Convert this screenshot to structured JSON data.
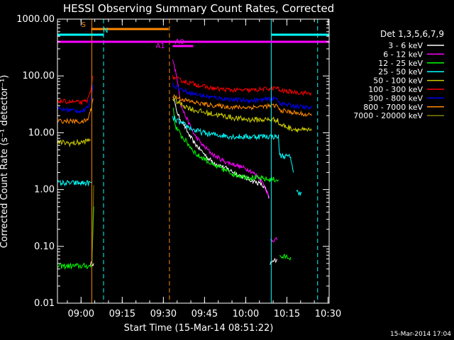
{
  "chart_data": {
    "type": "line",
    "title": "HESSI Observing Summary Count Rates, Corrected",
    "xlabel": "Start Time (15-Mar-14 08:51:22)",
    "ylabel": "Corrected Count Rate (s⁻¹ detector⁻¹)",
    "footer": "15-Mar-2014 17:04",
    "x_unit": "minutes after 08:51:22",
    "xlim": [
      0,
      99
    ],
    "ylim": [
      0.01,
      1000
    ],
    "yscale": "log",
    "grid": false,
    "legend_position": "right",
    "legend_title": "Det 1,3,5,6,7,9",
    "x_ticks": [
      {
        "t": 8.6,
        "label": "09:00"
      },
      {
        "t": 23.6,
        "label": "09:15"
      },
      {
        "t": 38.6,
        "label": "09:30"
      },
      {
        "t": 53.6,
        "label": "09:45"
      },
      {
        "t": 68.6,
        "label": "10:00"
      },
      {
        "t": 83.6,
        "label": "10:15"
      },
      {
        "t": 98.6,
        "label": "10:30"
      }
    ],
    "y_ticks": [
      {
        "v": 0.01,
        "label": "0.01"
      },
      {
        "v": 0.1,
        "label": "0.10"
      },
      {
        "v": 1,
        "label": "1.00"
      },
      {
        "v": 10,
        "label": "10.00"
      },
      {
        "v": 100,
        "label": "100.00"
      },
      {
        "v": 1000,
        "label": "1000.00"
      }
    ],
    "series": [
      {
        "name": "3 - 6 keV",
        "color": "#ffffff",
        "noise": 0.04,
        "points": [
          [
            12,
            0.05
          ],
          [
            13.2,
            0.05
          ],
          [
            13.4,
            null
          ],
          [
            42,
            45
          ],
          [
            43,
            30
          ],
          [
            44,
            20
          ],
          [
            46,
            14
          ],
          [
            48,
            9
          ],
          [
            50,
            6.5
          ],
          [
            53,
            4.5
          ],
          [
            55,
            3.5
          ],
          [
            58,
            2.8
          ],
          [
            62,
            2.3
          ],
          [
            66,
            1.8
          ],
          [
            70,
            1.5
          ],
          [
            74,
            1.25
          ],
          [
            76,
            1.0
          ],
          [
            77,
            0.7
          ],
          [
            77.1,
            null
          ],
          [
            77.5,
            0.05
          ],
          [
            80,
            0.06
          ],
          [
            80.1,
            null
          ]
        ]
      },
      {
        "name": "6 - 12 keV",
        "color": "#ff00ff",
        "noise": 0.04,
        "points": [
          [
            42,
            200
          ],
          [
            43,
            120
          ],
          [
            44,
            70
          ],
          [
            45,
            30
          ],
          [
            47,
            18
          ],
          [
            50,
            9
          ],
          [
            53,
            6
          ],
          [
            57,
            4
          ],
          [
            61,
            3.1
          ],
          [
            65,
            2.7
          ],
          [
            70,
            2.2
          ],
          [
            73,
            1.7
          ],
          [
            75,
            1.3
          ],
          [
            76,
            1.0
          ],
          [
            77.2,
            0.7
          ],
          [
            77.3,
            null
          ],
          [
            77.5,
            0.13
          ],
          [
            80,
            0.13
          ],
          [
            80.1,
            null
          ]
        ]
      },
      {
        "name": "12 - 25 keV",
        "color": "#00ff00",
        "noise": 0.05,
        "points": [
          [
            0,
            0.045
          ],
          [
            12.5,
            0.045
          ],
          [
            13.2,
            0.5
          ],
          [
            13.3,
            null
          ],
          [
            42,
            30
          ],
          [
            43,
            13
          ],
          [
            45,
            9
          ],
          [
            48,
            6
          ],
          [
            51,
            4
          ],
          [
            54,
            3.4
          ],
          [
            57,
            2.6
          ],
          [
            60,
            2.3
          ],
          [
            64,
            1.9
          ],
          [
            68,
            1.7
          ],
          [
            72,
            1.6
          ],
          [
            77,
            1.5
          ],
          [
            80.5,
            1.5
          ],
          [
            80.6,
            null
          ],
          [
            81,
            0.065
          ],
          [
            85,
            0.065
          ],
          [
            85.1,
            null
          ]
        ]
      },
      {
        "name": "25 - 50 keV",
        "color": "#00ffff",
        "noise": 0.05,
        "points": [
          [
            0,
            1.3
          ],
          [
            12.5,
            1.3
          ],
          [
            12.6,
            null
          ],
          [
            42,
            18
          ],
          [
            46,
            14
          ],
          [
            50,
            11
          ],
          [
            55,
            9.5
          ],
          [
            60,
            9
          ],
          [
            65,
            8.5
          ],
          [
            70,
            8.5
          ],
          [
            75,
            8.7
          ],
          [
            80.5,
            8.5
          ],
          [
            81,
            4
          ],
          [
            85,
            3.7
          ],
          [
            86,
            2
          ],
          [
            86.1,
            null
          ],
          [
            87,
            0.9
          ],
          [
            89,
            0.9
          ],
          [
            89.1,
            null
          ]
        ]
      },
      {
        "name": "50 - 100 keV",
        "color": "#cccc00",
        "noise": 0.05,
        "points": [
          [
            0,
            6.8
          ],
          [
            5,
            6.5
          ],
          [
            9,
            6.8
          ],
          [
            12,
            7.5
          ],
          [
            12.5,
            null
          ],
          [
            42,
            40
          ],
          [
            46,
            30
          ],
          [
            50,
            25
          ],
          [
            55,
            22
          ],
          [
            60,
            20
          ],
          [
            65,
            18
          ],
          [
            70,
            17
          ],
          [
            75,
            17
          ],
          [
            80,
            17
          ],
          [
            81,
            14
          ],
          [
            85,
            12
          ],
          [
            90,
            11
          ],
          [
            92.6,
            11
          ]
        ]
      },
      {
        "name": "100 - 300 keV",
        "color": "#ff0000",
        "noise": 0.04,
        "points": [
          [
            0,
            36
          ],
          [
            5,
            35
          ],
          [
            9,
            34
          ],
          [
            11,
            37
          ],
          [
            12,
            55
          ],
          [
            13,
            100
          ],
          [
            13.2,
            null
          ],
          [
            42,
            95
          ],
          [
            46,
            80
          ],
          [
            50,
            72
          ],
          [
            55,
            62
          ],
          [
            60,
            58
          ],
          [
            65,
            56
          ],
          [
            70,
            56
          ],
          [
            75,
            58
          ],
          [
            80,
            62
          ],
          [
            81,
            55
          ],
          [
            85,
            53
          ],
          [
            90,
            50
          ],
          [
            92.6,
            50
          ]
        ]
      },
      {
        "name": "300 - 800 keV",
        "color": "#0000ff",
        "noise": 0.04,
        "points": [
          [
            0,
            26
          ],
          [
            5,
            25
          ],
          [
            9,
            24
          ],
          [
            11,
            27
          ],
          [
            12,
            38
          ],
          [
            13,
            70
          ],
          [
            13.2,
            null
          ],
          [
            42,
            70
          ],
          [
            46,
            55
          ],
          [
            50,
            48
          ],
          [
            55,
            43
          ],
          [
            60,
            40
          ],
          [
            65,
            38
          ],
          [
            70,
            37
          ],
          [
            75,
            38
          ],
          [
            80,
            40
          ],
          [
            81,
            33
          ],
          [
            85,
            30
          ],
          [
            90,
            28
          ],
          [
            92.6,
            27
          ]
        ]
      },
      {
        "name": "800 - 7000 keV",
        "color": "#ff8800",
        "noise": 0.04,
        "points": [
          [
            0,
            16
          ],
          [
            5,
            16
          ],
          [
            9,
            15.5
          ],
          [
            11,
            17
          ],
          [
            12,
            24
          ],
          [
            13,
            40
          ],
          [
            13.2,
            null
          ],
          [
            42,
            45
          ],
          [
            46,
            38
          ],
          [
            50,
            34
          ],
          [
            55,
            31
          ],
          [
            60,
            29
          ],
          [
            65,
            28
          ],
          [
            70,
            28
          ],
          [
            75,
            29
          ],
          [
            80,
            30
          ],
          [
            81,
            25
          ],
          [
            85,
            23
          ],
          [
            90,
            21
          ],
          [
            92.6,
            20
          ]
        ]
      },
      {
        "name": "7000 - 20000 keV",
        "color": "#808000",
        "noise": 0.02,
        "points": [
          [
            12.5,
            0.04
          ],
          [
            13.2,
            1.2
          ],
          [
            13.3,
            null
          ]
        ]
      }
    ],
    "flag_bars": [
      {
        "label": "S",
        "color": "#ff8800",
        "label_t": 9.5,
        "level": 1,
        "spans": [
          [
            12.3,
            40.5
          ]
        ]
      },
      {
        "label": "N",
        "color": "#00ffff",
        "label_t": 17.5,
        "level": 2,
        "spans": [
          [
            0,
            16.8
          ],
          [
            78,
            99
          ]
        ]
      },
      {
        "label": "A0",
        "color": "#ff00ff",
        "label_t": 44.5,
        "level": 4,
        "spans": [
          [
            42,
            49.5
          ]
        ]
      },
      {
        "label": "A1",
        "color": "#ff00ff",
        "label_t": 37.5,
        "level": 3,
        "spans": [
          [
            0,
            99
          ]
        ]
      }
    ],
    "vlines": [
      {
        "t": 12.5,
        "color": "#ff8800",
        "style": "solid"
      },
      {
        "t": 16.8,
        "color": "#00ffff",
        "style": "dashed"
      },
      {
        "t": 40.8,
        "color": "#ff8800",
        "style": "dashed"
      },
      {
        "t": 77.9,
        "color": "#00ffff",
        "style": "solid"
      },
      {
        "t": 94.8,
        "color": "#00ffff",
        "style": "dashed"
      }
    ]
  }
}
